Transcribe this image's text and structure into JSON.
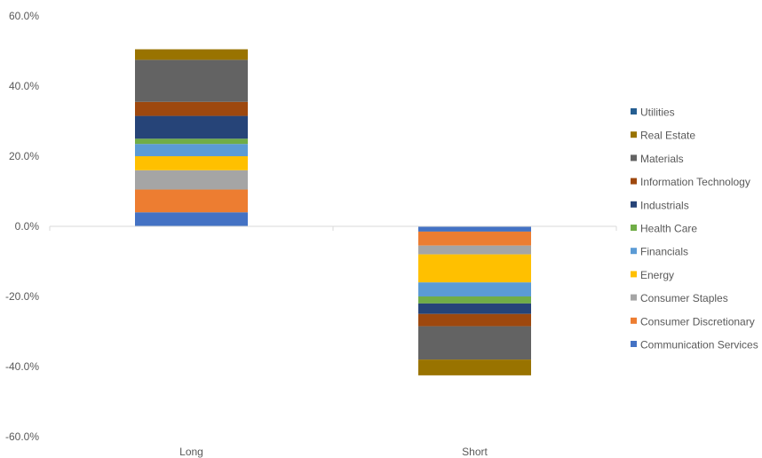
{
  "chart_data": {
    "type": "bar",
    "stacked": true,
    "categories": [
      "Long",
      "Short"
    ],
    "ylim": [
      -60,
      60
    ],
    "y_ticks": [
      "60.0%",
      "40.0%",
      "20.0%",
      "0.0%",
      "-20.0%",
      "-40.0%",
      "-60.0%"
    ],
    "y_tick_values": [
      60,
      40,
      20,
      0,
      -20,
      -40,
      -60
    ],
    "grid": false,
    "legend_position": "right",
    "series": [
      {
        "name": "Communication Services",
        "color": "#4472C4",
        "values": [
          4.0,
          -1.5
        ]
      },
      {
        "name": "Consumer Discretionary",
        "color": "#ED7D31",
        "values": [
          6.5,
          -4.0
        ]
      },
      {
        "name": "Consumer Staples",
        "color": "#A5A5A5",
        "values": [
          5.5,
          -2.5
        ]
      },
      {
        "name": "Energy",
        "color": "#FFC000",
        "values": [
          4.0,
          -8.0
        ]
      },
      {
        "name": "Financials",
        "color": "#5B9BD5",
        "values": [
          3.5,
          -4.0
        ]
      },
      {
        "name": "Health Care",
        "color": "#70AD47",
        "values": [
          1.5,
          -2.0
        ]
      },
      {
        "name": "Industrials",
        "color": "#264478",
        "values": [
          6.5,
          -3.0
        ]
      },
      {
        "name": "Information Technology",
        "color": "#9E480E",
        "values": [
          4.0,
          -3.5
        ]
      },
      {
        "name": "Materials",
        "color": "#636363",
        "values": [
          12.0,
          -9.5
        ]
      },
      {
        "name": "Real Estate",
        "color": "#997300",
        "values": [
          3.0,
          -4.5
        ]
      },
      {
        "name": "Utilities",
        "color": "#255E91",
        "values": [
          0.0,
          0.0
        ]
      }
    ]
  }
}
